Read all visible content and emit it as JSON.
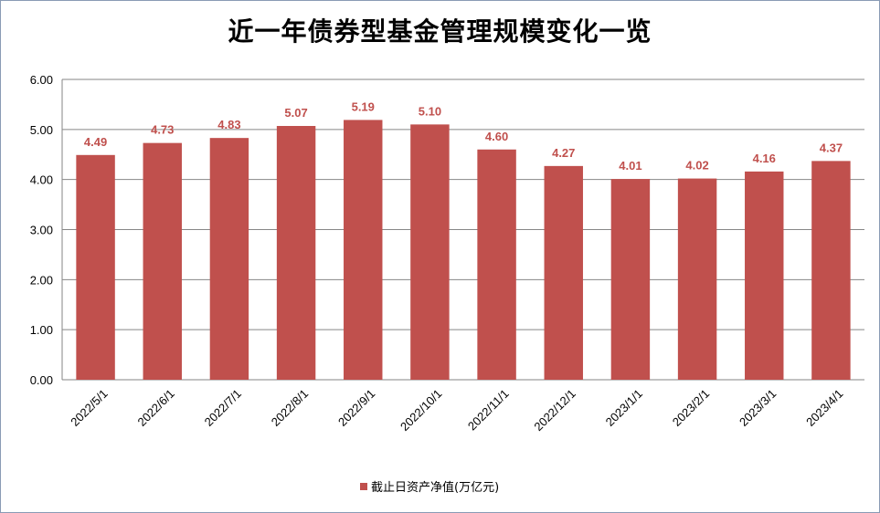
{
  "chart_data": {
    "type": "bar",
    "title": "近一年债券型基金管理规模变化一览",
    "categories": [
      "2022/5/1",
      "2022/6/1",
      "2022/7/1",
      "2022/8/1",
      "2022/9/1",
      "2022/10/1",
      "2022/11/1",
      "2022/12/1",
      "2023/1/1",
      "2023/2/1",
      "2023/3/1",
      "2023/4/1"
    ],
    "series": [
      {
        "name": "截止日资产净值(万亿元)",
        "values": [
          4.49,
          4.73,
          4.83,
          5.07,
          5.19,
          5.1,
          4.6,
          4.27,
          4.01,
          4.02,
          4.16,
          4.37
        ],
        "labels": [
          "4.49",
          "4.73",
          "4.83",
          "5.07",
          "5.19",
          "5.10",
          "4.60",
          "4.27",
          "4.01",
          "4.02",
          "4.16",
          "4.37"
        ]
      }
    ],
    "ylim": [
      0,
      6
    ],
    "yticks": [
      "0.00",
      "1.00",
      "2.00",
      "3.00",
      "4.00",
      "5.00",
      "6.00"
    ],
    "xlabel": "",
    "ylabel": "",
    "grid": true,
    "legend_position": "bottom",
    "colors": {
      "bar": "#c0504d",
      "label": "#c0504d",
      "grid": "#868686"
    }
  }
}
